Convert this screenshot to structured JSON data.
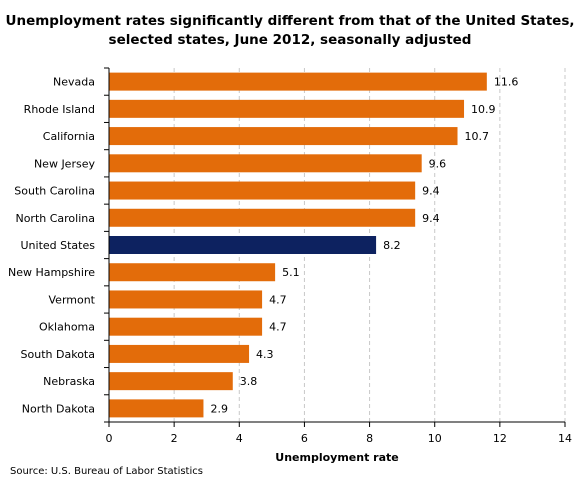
{
  "title_line1": "Unemployment rates significantly different from that of the United States,",
  "title_line2": "selected states, June 2012, seasonally adjusted",
  "source": "Source: U.S. Bureau of Labor Statistics",
  "colors": {
    "bar": "#e36c0a",
    "highlight": "#0d2260",
    "grid": "#c8c8c8",
    "axis": "#000000"
  },
  "chart_data": {
    "type": "bar",
    "orientation": "horizontal",
    "categories": [
      "Nevada",
      "Rhode Island",
      "California",
      "New Jersey",
      "South Carolina",
      "North Carolina",
      "United States",
      "New Hampshire",
      "Vermont",
      "Oklahoma",
      "South Dakota",
      "Nebraska",
      "North Dakota"
    ],
    "values": [
      11.6,
      10.9,
      10.7,
      9.6,
      9.4,
      9.4,
      8.2,
      5.1,
      4.7,
      4.7,
      4.3,
      3.8,
      2.9
    ],
    "value_labels": [
      "11.6",
      "10.9",
      "10.7",
      "9.6",
      "9.4",
      "9.4",
      "8.2",
      "5.1",
      "4.7",
      "4.7",
      "4.3",
      "3.8",
      "2.9"
    ],
    "highlight_category": "United States",
    "xlabel": "Unemployment rate",
    "ylabel": "",
    "xlim": [
      0,
      14
    ],
    "xticks": [
      0,
      2,
      4,
      6,
      8,
      10,
      12,
      14
    ],
    "xtick_labels": [
      "0",
      "2",
      "4",
      "6",
      "8",
      "10",
      "12",
      "14"
    ],
    "grid": "vertical dashed",
    "legend": "none"
  }
}
